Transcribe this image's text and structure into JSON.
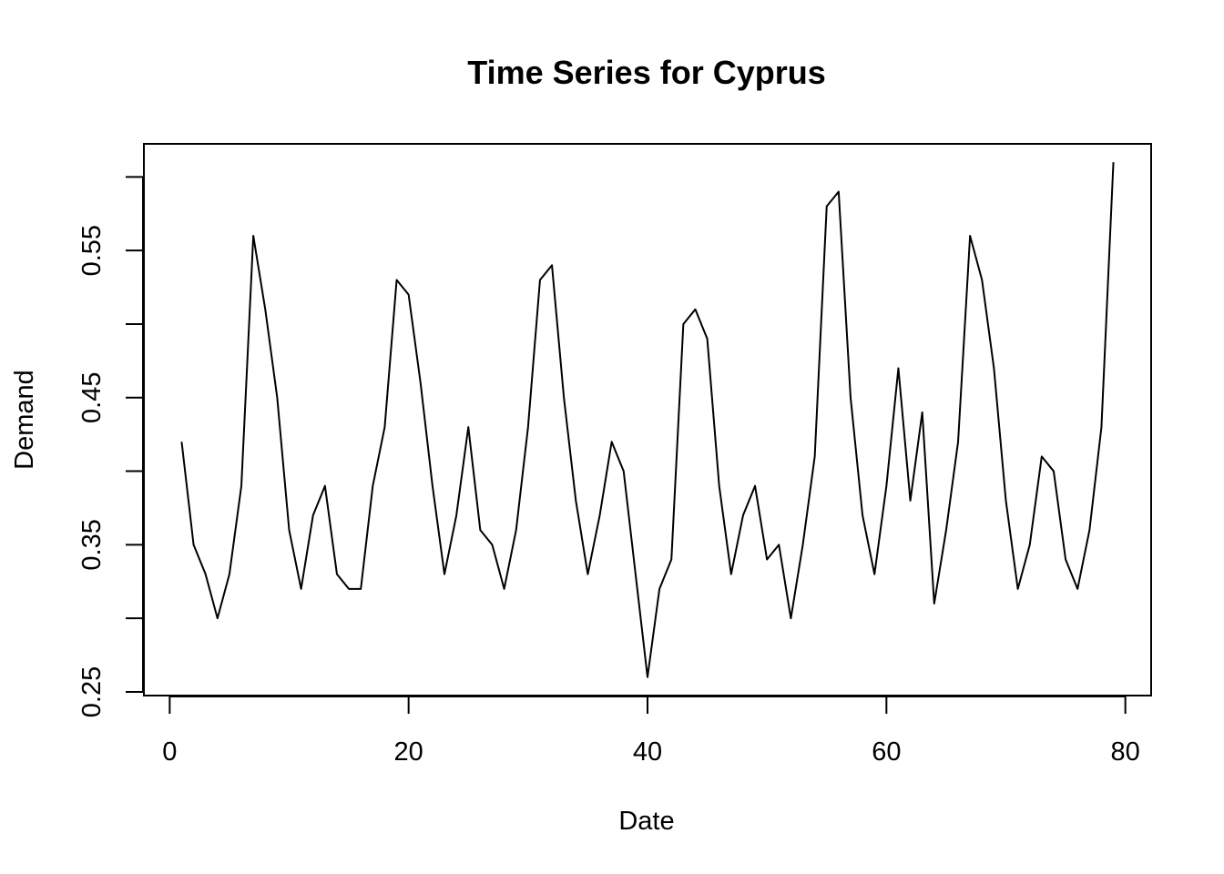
{
  "chart_data": {
    "type": "line",
    "title": "Time Series for Cyprus",
    "xlabel": "Date",
    "ylabel": "Demand",
    "xlim": [
      -2.16,
      82.16
    ],
    "ylim": [
      0.2475,
      0.6225
    ],
    "x_ticks": [
      0,
      20,
      40,
      60,
      80
    ],
    "x_tick_labels": [
      "0",
      "20",
      "40",
      "60",
      "80"
    ],
    "y_ticks": [
      0.25,
      0.3,
      0.35,
      0.4,
      0.45,
      0.5,
      0.55,
      0.6
    ],
    "y_tick_labels": [
      "0.25",
      "",
      "0.35",
      "",
      "0.45",
      "",
      "0.55",
      ""
    ],
    "grid": false,
    "series": [
      {
        "x": [
          1,
          2,
          3,
          4,
          5,
          6,
          7,
          8,
          9,
          10,
          11,
          12,
          13,
          14,
          15,
          16,
          17,
          18,
          19,
          20,
          21,
          22,
          23,
          24,
          25,
          26,
          27,
          28,
          29,
          30,
          31,
          32,
          33,
          34,
          35,
          36,
          37,
          38,
          39,
          40,
          41,
          42,
          43,
          44,
          45,
          46,
          47,
          48,
          49,
          50,
          51,
          52,
          53,
          54,
          55,
          56,
          57,
          58,
          59,
          60,
          61,
          62,
          63,
          64,
          65,
          66,
          67,
          68,
          69,
          70,
          71,
          72,
          73,
          74,
          75,
          76,
          77,
          78,
          79
        ],
        "values": [
          0.42,
          0.35,
          0.33,
          0.3,
          0.33,
          0.39,
          0.56,
          0.51,
          0.45,
          0.36,
          0.32,
          0.37,
          0.39,
          0.33,
          0.32,
          0.32,
          0.39,
          0.43,
          0.53,
          0.52,
          0.46,
          0.39,
          0.33,
          0.37,
          0.43,
          0.36,
          0.35,
          0.32,
          0.36,
          0.43,
          0.53,
          0.54,
          0.45,
          0.38,
          0.33,
          0.37,
          0.42,
          0.4,
          0.33,
          0.26,
          0.32,
          0.34,
          0.5,
          0.51,
          0.49,
          0.39,
          0.33,
          0.37,
          0.39,
          0.34,
          0.35,
          0.3,
          0.35,
          0.41,
          0.58,
          0.59,
          0.45,
          0.37,
          0.33,
          0.39,
          0.47,
          0.38,
          0.44,
          0.31,
          0.36,
          0.42,
          0.56,
          0.53,
          0.47,
          0.38,
          0.32,
          0.35,
          0.41,
          0.4,
          0.34,
          0.32,
          0.36,
          0.43,
          0.61
        ]
      }
    ]
  }
}
